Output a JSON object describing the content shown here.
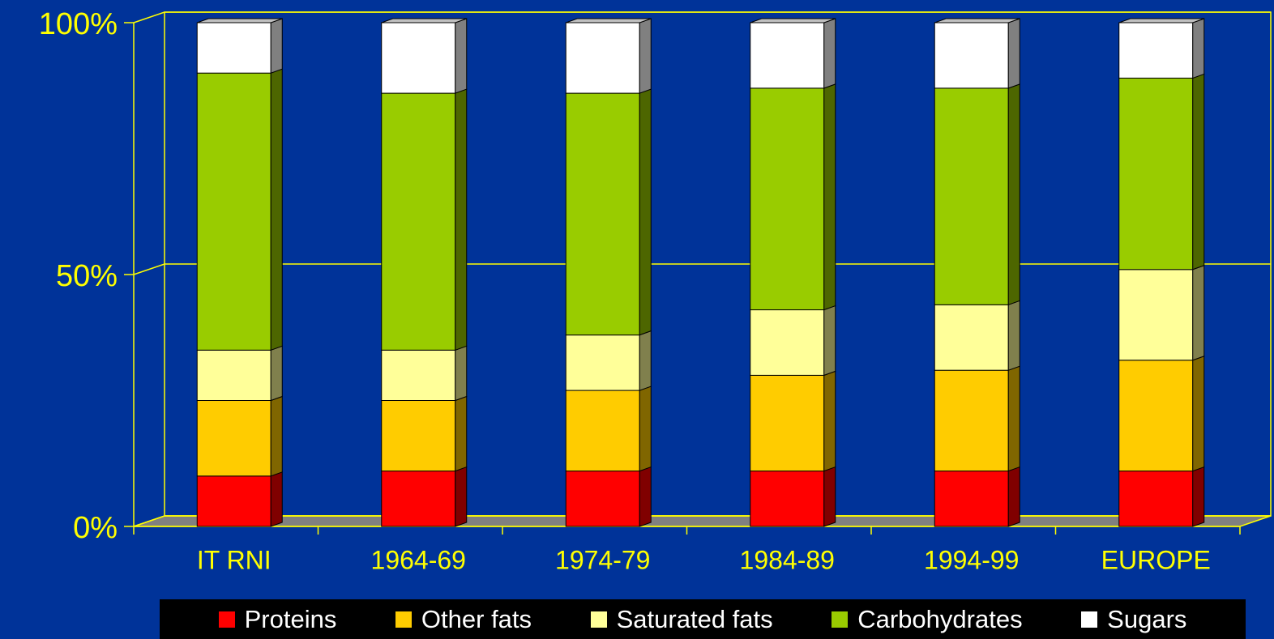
{
  "chart_data": {
    "type": "stacked_bar",
    "categories": [
      "IT RNI",
      "1964-69",
      "1974-79",
      "1984-89",
      "1994-99",
      "EUROPE"
    ],
    "series": [
      {
        "name": "Proteins",
        "color": "#ff0000",
        "values": [
          10,
          11,
          11,
          11,
          11,
          11
        ]
      },
      {
        "name": "Other fats",
        "color": "#ffcc00",
        "values": [
          15,
          14,
          16,
          19,
          20,
          22
        ]
      },
      {
        "name": "Saturated fats",
        "color": "#ffff99",
        "values": [
          10,
          10,
          11,
          13,
          13,
          18
        ]
      },
      {
        "name": "Carbohydrates",
        "color": "#99cc00",
        "values": [
          55,
          51,
          48,
          44,
          43,
          38
        ]
      },
      {
        "name": "Sugars",
        "color": "#ffffff",
        "values": [
          10,
          14,
          14,
          13,
          13,
          11
        ]
      }
    ],
    "ylim": [
      0,
      100
    ],
    "yticks": [
      {
        "value": 0,
        "label": "0%"
      },
      {
        "value": 50,
        "label": "50%"
      },
      {
        "value": 100,
        "label": "100%"
      }
    ],
    "grid": true
  }
}
